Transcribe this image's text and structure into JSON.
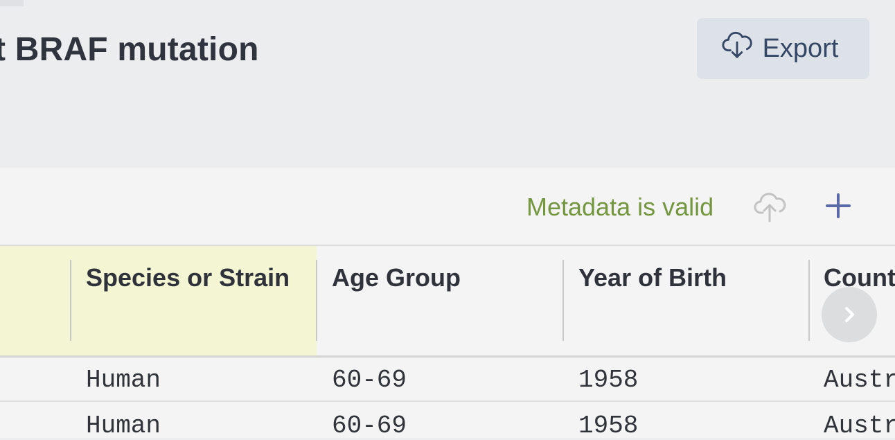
{
  "header": {
    "title": "t BRAF mutation",
    "export_label": "Export"
  },
  "toolbar": {
    "status_text": "Metadata is valid",
    "status_color": "#73963f"
  },
  "table": {
    "columns": [
      "Species or Strain",
      "Age Group",
      "Year of Birth",
      "Count"
    ],
    "rows": [
      [
        "Human",
        "60-69",
        "1958",
        "Austra"
      ],
      [
        "Human",
        "60-69",
        "1958",
        "Austra"
      ]
    ]
  },
  "colors": {
    "background": "#ecedef",
    "panel": "#f4f4f4",
    "highlight": "#f4f5d2",
    "export_button": "#dde1e8",
    "accent": "#5b6aa6"
  }
}
